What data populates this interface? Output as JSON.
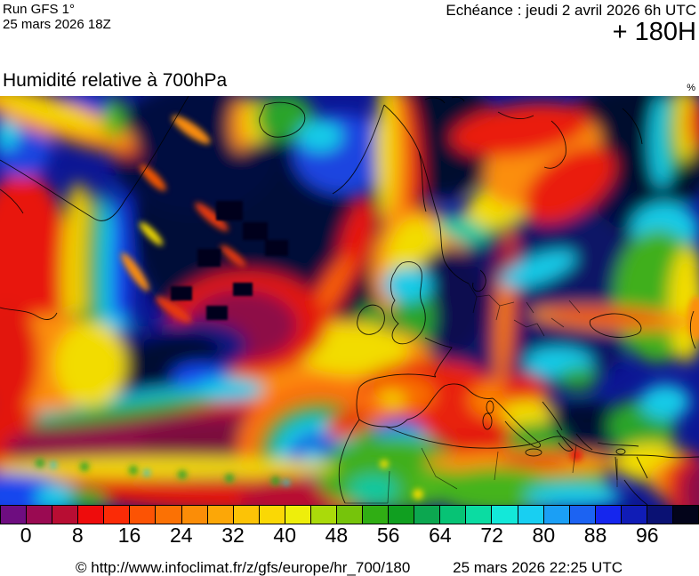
{
  "header": {
    "run_line1": "Run GFS 1°",
    "run_line2": "25 mars 2026 18Z",
    "echeance": "Echéance : jeudi 2 avril 2026 6h UTC",
    "lead_time": "+ 180H"
  },
  "map": {
    "title": "Humidité relative à 700hPa",
    "unit": "%"
  },
  "colorbar": {
    "orientation": "horizontal",
    "tick_labels": [
      "0",
      "8",
      "16",
      "24",
      "32",
      "40",
      "48",
      "56",
      "64",
      "72",
      "80",
      "88",
      "96"
    ],
    "cell_colors": [
      "#6E0D80",
      "#9A0A52",
      "#B80D33",
      "#EE0C0C",
      "#FB2B06",
      "#FC5304",
      "#FB7104",
      "#FB8D07",
      "#FCA707",
      "#FCC306",
      "#FAD805",
      "#EEEE0B",
      "#AADA0A",
      "#76C40B",
      "#30AE14",
      "#109F20",
      "#0CA750",
      "#07C375",
      "#0BDCA2",
      "#13E8D9",
      "#18CFF2",
      "#1B9FF5",
      "#1C63F2",
      "#1526EE",
      "#101CB6",
      "#0A1173",
      "#03041A"
    ]
  },
  "footer": {
    "source": "© http://www.infoclimat.fr/z/gfs/europe/hr_700/180",
    "generated": "25 mars 2026 22:25 UTC"
  },
  "chart_data": {
    "type": "heatmap",
    "title": "Humidité relative à 700hPa",
    "unit": "%",
    "model": "GFS 1°",
    "run": "25 mars 2026 18Z",
    "valid_time": "jeudi 2 avril 2026 6h UTC",
    "lead_hours": 180,
    "region": "Europe / Atlantique Nord / Afrique du Nord",
    "colorbar_ticks": [
      0,
      8,
      16,
      24,
      32,
      40,
      48,
      56,
      64,
      72,
      80,
      88,
      96
    ],
    "palette_low_to_high": [
      "#6E0D80",
      "#9A0A52",
      "#B80D33",
      "#EE0C0C",
      "#FB2B06",
      "#FC5304",
      "#FB7104",
      "#FB8D07",
      "#FCA707",
      "#FCC306",
      "#FAD805",
      "#EEEE0B",
      "#AADA0A",
      "#76C40B",
      "#30AE14",
      "#109F20",
      "#0CA750",
      "#07C375",
      "#0BDCA2",
      "#13E8D9",
      "#18CFF2",
      "#1B9FF5",
      "#1C63F2",
      "#1526EE",
      "#101CB6",
      "#0A1173",
      "#03041A"
    ],
    "notable_features": [
      "Very humid (dark navy, >96%) pools over Greenland interior, northern Russia, central/eastern Europe and the Aegean / eastern Mediterranean",
      "Dry red-orange band along the western map edge near Greenland with yellow-green-cyan fringes",
      "Curved dry yellow/orange/red band from the Norwegian Sea down across the North Atlantic toward a dark crimson pocket west of Ireland",
      "Large very dry maroon band (<8%) across the subtropical Atlantic toward Iberia",
      "Closed humid swirl (blue core ringed by cyan/green) west of Morocco / Canary Islands",
      "Red dry band over Scandinavia and a narrow red band from the North Sea down through central Europe",
      "Green/cyan humid patches over North Africa and eastern Europe"
    ]
  }
}
